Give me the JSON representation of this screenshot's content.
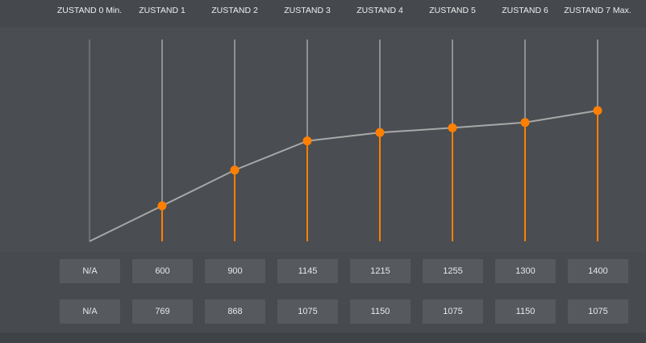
{
  "states": [
    {
      "label": "ZUSTAND 0 Min.",
      "value": "N/A",
      "secondary": "N/A",
      "level": null
    },
    {
      "label": "ZUSTAND 1",
      "value": "600",
      "secondary": "769",
      "level": 600
    },
    {
      "label": "ZUSTAND 2",
      "value": "900",
      "secondary": "868",
      "level": 900
    },
    {
      "label": "ZUSTAND 3",
      "value": "1145",
      "secondary": "1075",
      "level": 1145
    },
    {
      "label": "ZUSTAND 4",
      "value": "1215",
      "secondary": "1150",
      "level": 1215
    },
    {
      "label": "ZUSTAND 5",
      "value": "1255",
      "secondary": "1075",
      "level": 1255
    },
    {
      "label": "ZUSTAND 6",
      "value": "1300",
      "secondary": "1150",
      "level": 1300
    },
    {
      "label": "ZUSTAND 7 Max.",
      "value": "1400",
      "secondary": "1075",
      "level": 1400
    }
  ],
  "colors": {
    "accent": "#ff7f00",
    "line": "#a8a8a8",
    "guide": "#8e9094",
    "background": "#474a4f"
  }
}
